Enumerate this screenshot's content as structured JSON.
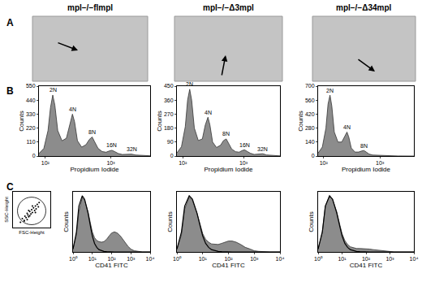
{
  "figure": {
    "panel_labels": [
      "A",
      "B",
      "C"
    ],
    "columns": [
      "mpl−/−flmpl",
      "mpl−/−Δ3mpl",
      "mpl−/−Δ34mpl"
    ]
  },
  "chart_data": [
    {
      "type": "area",
      "log": "x",
      "grid": false,
      "color": "#8c8c8c",
      "xlabel": "Propidium Iodide",
      "ylabel": "Counts",
      "x": [
        80,
        95,
        110,
        120,
        130,
        140,
        155,
        180,
        210,
        235,
        260,
        280,
        310,
        360,
        420,
        470,
        520,
        570,
        640,
        740,
        850,
        950,
        1040,
        1150,
        1300,
        1500,
        1750,
        2080,
        2400,
        3000,
        4000
      ],
      "values": [
        20,
        60,
        200,
        380,
        480,
        400,
        200,
        120,
        140,
        250,
        330,
        270,
        120,
        70,
        90,
        130,
        150,
        110,
        60,
        35,
        30,
        40,
        45,
        35,
        20,
        12,
        12,
        15,
        8,
        4,
        2
      ],
      "xlim": [
        80,
        4000
      ],
      "xticks": [
        {
          "value": 100,
          "label": "10²"
        },
        {
          "value": 1000,
          "label": "10³"
        }
      ],
      "ylim": [
        0,
        550
      ],
      "yticks": [
        0,
        110,
        220,
        330,
        440,
        550
      ],
      "annotations": [
        {
          "text": "2N",
          "x": 130,
          "y": 480
        },
        {
          "text": "4N",
          "x": 260,
          "y": 330
        },
        {
          "text": "8N",
          "x": 520,
          "y": 150
        },
        {
          "text": "16N",
          "x": 1040,
          "y": 45
        },
        {
          "text": "32N",
          "x": 2080,
          "y": 15
        }
      ]
    },
    {
      "type": "area",
      "log": "x",
      "grid": false,
      "color": "#8c8c8c",
      "xlabel": "Propidium Iodide",
      "ylabel": "Counts",
      "x": [
        80,
        95,
        110,
        120,
        130,
        140,
        155,
        180,
        210,
        235,
        260,
        280,
        310,
        360,
        420,
        470,
        520,
        570,
        640,
        740,
        850,
        950,
        1040,
        1150,
        1300,
        1500,
        1750,
        2080,
        2400,
        3000,
        4000
      ],
      "values": [
        20,
        60,
        190,
        360,
        430,
        360,
        180,
        100,
        110,
        200,
        250,
        200,
        90,
        55,
        70,
        100,
        110,
        80,
        45,
        28,
        25,
        35,
        40,
        30,
        18,
        10,
        11,
        15,
        7,
        3,
        1
      ],
      "xlim": [
        80,
        4000
      ],
      "xticks": [
        {
          "value": 100,
          "label": "10²"
        },
        {
          "value": 1000,
          "label": "10³"
        }
      ],
      "ylim": [
        0,
        450
      ],
      "yticks": [
        0,
        90,
        180,
        270,
        360,
        450
      ],
      "annotations": [
        {
          "text": "2N",
          "x": 130,
          "y": 430
        },
        {
          "text": "4N",
          "x": 260,
          "y": 250
        },
        {
          "text": "8N",
          "x": 520,
          "y": 110
        },
        {
          "text": "16N",
          "x": 1040,
          "y": 40
        },
        {
          "text": "32N",
          "x": 2080,
          "y": 15
        }
      ]
    },
    {
      "type": "area",
      "log": "x",
      "grid": false,
      "color": "#8c8c8c",
      "xlabel": "Propidium Iodide",
      "ylabel": "Counts",
      "x": [
        80,
        95,
        110,
        120,
        130,
        140,
        155,
        180,
        210,
        235,
        260,
        280,
        310,
        360,
        420,
        470,
        520,
        570,
        640,
        740,
        850,
        950,
        1040,
        1150,
        1300,
        1500,
        1750,
        2080,
        2400,
        3000,
        4000
      ],
      "values": [
        30,
        90,
        280,
        520,
        610,
        500,
        240,
        140,
        140,
        200,
        240,
        190,
        80,
        40,
        40,
        50,
        55,
        40,
        20,
        10,
        8,
        6,
        5,
        4,
        3,
        2,
        2,
        1,
        1,
        0,
        0
      ],
      "xlim": [
        80,
        4000
      ],
      "xticks": [
        {
          "value": 100,
          "label": "10²"
        },
        {
          "value": 1000,
          "label": "10³"
        }
      ],
      "ylim": [
        0,
        700
      ],
      "yticks": [
        0,
        140,
        280,
        420,
        560,
        700
      ],
      "annotations": [
        {
          "text": "2N",
          "x": 130,
          "y": 610
        },
        {
          "text": "4N",
          "x": 260,
          "y": 240
        },
        {
          "text": "8N",
          "x": 520,
          "y": 55
        }
      ]
    },
    {
      "type": "scatter",
      "grid": false,
      "color": "#000000",
      "marker": "dot",
      "tick_labels": false,
      "xlabel": "FSC-Height",
      "ylabel": "SSC-Height",
      "x": [
        200,
        250,
        300,
        320,
        350,
        380,
        400,
        420,
        450,
        480,
        500,
        520,
        550,
        580,
        600,
        620,
        650,
        700,
        300,
        450,
        520,
        380,
        600,
        680,
        420
      ],
      "values": [
        150,
        250,
        200,
        320,
        280,
        400,
        350,
        300,
        450,
        380,
        500,
        420,
        550,
        480,
        600,
        520,
        650,
        700,
        180,
        330,
        600,
        220,
        420,
        580,
        480
      ],
      "xlim": [
        0,
        1000
      ],
      "xticks": [],
      "ylim": [
        0,
        1000
      ],
      "yticks": []
    },
    {
      "type": "area",
      "log": "x",
      "grid": false,
      "tick_labels": "x",
      "xlabel": "CD41 FITC",
      "ylabel": "Counts",
      "x": [
        1,
        1.5,
        2,
        3,
        4,
        6,
        8,
        10,
        13,
        17,
        22,
        30,
        40,
        55,
        75,
        100,
        140,
        200,
        300,
        450,
        700,
        1000,
        1500,
        2500,
        4000,
        10000
      ],
      "series": [
        {
          "type": "area",
          "color": "#8c8c8c",
          "values": [
            5,
            30,
            70,
            95,
            90,
            70,
            50,
            35,
            25,
            20,
            18,
            17,
            18,
            22,
            28,
            33,
            35,
            33,
            27,
            18,
            10,
            5,
            2,
            1,
            0,
            0
          ]
        },
        {
          "type": "line",
          "color": "#000000",
          "values": [
            5,
            35,
            80,
            98,
            92,
            68,
            45,
            28,
            15,
            8,
            4,
            2,
            1,
            0.5,
            0,
            0,
            0,
            0,
            0,
            0,
            0,
            0,
            0,
            0,
            0,
            0
          ]
        }
      ],
      "xlim": [
        1,
        10000
      ],
      "xticks": [
        {
          "value": 1,
          "label": "10⁰"
        },
        {
          "value": 10,
          "label": "10¹"
        },
        {
          "value": 100,
          "label": "10²"
        },
        {
          "value": 1000,
          "label": "10³"
        },
        {
          "value": 10000,
          "label": "10⁴"
        }
      ],
      "ylim": [
        0,
        105
      ],
      "yticks": []
    },
    {
      "type": "area",
      "log": "x",
      "grid": false,
      "tick_labels": "x",
      "xlabel": "CD41 FITC",
      "ylabel": "Counts",
      "x": [
        1,
        1.5,
        2,
        3,
        4,
        6,
        8,
        10,
        13,
        17,
        22,
        30,
        40,
        55,
        75,
        100,
        140,
        200,
        300,
        450,
        700,
        1000,
        1500,
        2500,
        4000,
        10000
      ],
      "series": [
        {
          "type": "area",
          "color": "#8c8c8c",
          "values": [
            5,
            30,
            75,
            96,
            90,
            68,
            48,
            32,
            22,
            17,
            14,
            13,
            13,
            15,
            17,
            19,
            19,
            17,
            13,
            8,
            5,
            2,
            1,
            0,
            0,
            0
          ]
        },
        {
          "type": "line",
          "color": "#000000",
          "values": [
            5,
            35,
            80,
            98,
            92,
            68,
            45,
            28,
            15,
            8,
            4,
            2,
            1,
            0.5,
            0,
            0,
            0,
            0,
            0,
            0,
            0,
            0,
            0,
            0,
            0,
            0
          ]
        }
      ],
      "xlim": [
        1,
        10000
      ],
      "xticks": [
        {
          "value": 1,
          "label": "10⁰"
        },
        {
          "value": 10,
          "label": "10¹"
        },
        {
          "value": 100,
          "label": "10²"
        },
        {
          "value": 1000,
          "label": "10³"
        },
        {
          "value": 10000,
          "label": "10⁴"
        }
      ],
      "ylim": [
        0,
        105
      ],
      "yticks": []
    },
    {
      "type": "area",
      "log": "x",
      "grid": false,
      "tick_labels": "x",
      "xlabel": "CD41 FITC",
      "ylabel": "Counts",
      "x": [
        1,
        1.5,
        2,
        3,
        4,
        6,
        8,
        10,
        13,
        17,
        22,
        30,
        40,
        55,
        75,
        100,
        140,
        200,
        300,
        450,
        700,
        1000,
        1500,
        2500,
        4000,
        10000
      ],
      "series": [
        {
          "type": "area",
          "color": "#8c8c8c",
          "values": [
            5,
            35,
            80,
            98,
            92,
            70,
            48,
            32,
            20,
            13,
            9,
            7,
            6,
            6,
            6,
            6,
            5,
            4,
            3,
            2,
            1,
            0,
            0,
            0,
            0,
            0
          ]
        },
        {
          "type": "line",
          "color": "#000000",
          "values": [
            5,
            35,
            80,
            98,
            92,
            68,
            45,
            28,
            15,
            8,
            4,
            2,
            1,
            0.5,
            0,
            0,
            0,
            0,
            0,
            0,
            0,
            0,
            0,
            0,
            0,
            0
          ]
        }
      ],
      "xlim": [
        1,
        10000
      ],
      "xticks": [
        {
          "value": 1,
          "label": "10⁰"
        },
        {
          "value": 10,
          "label": "10¹"
        },
        {
          "value": 100,
          "label": "10²"
        },
        {
          "value": 1000,
          "label": "10³"
        },
        {
          "value": 10000,
          "label": "10⁴"
        }
      ],
      "ylim": [
        0,
        105
      ],
      "yticks": []
    }
  ]
}
